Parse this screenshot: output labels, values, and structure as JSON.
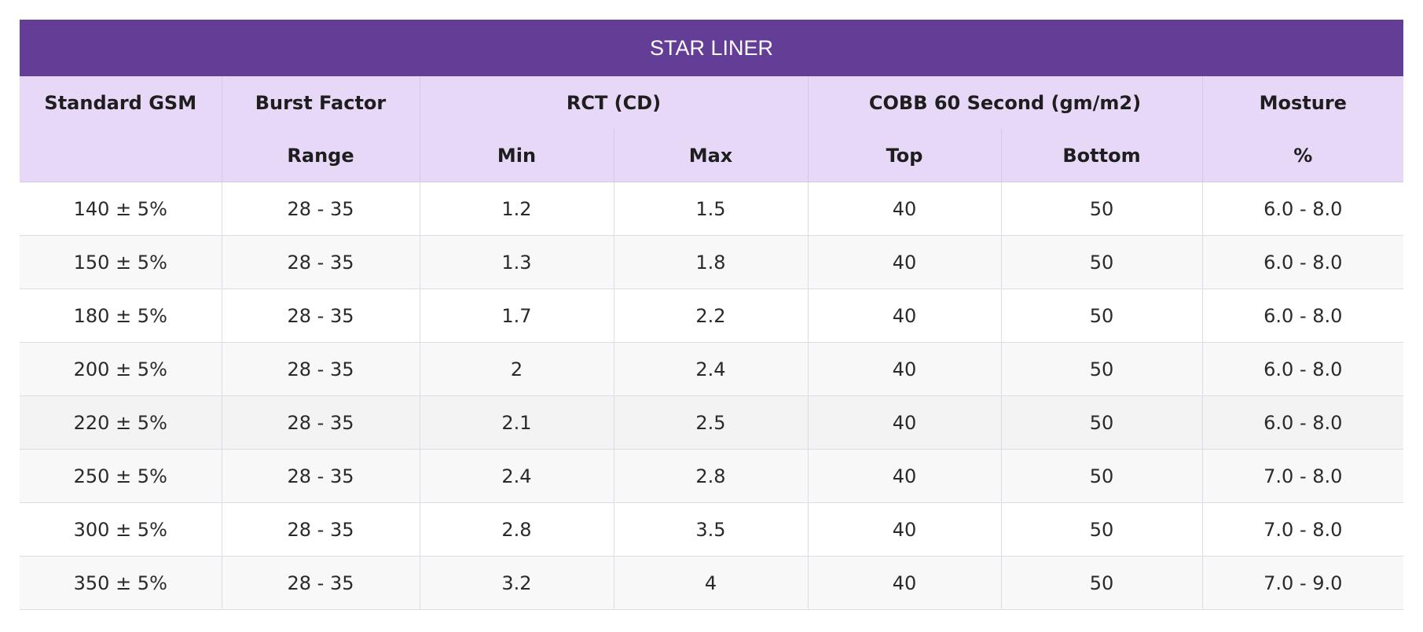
{
  "title": "STAR LINER",
  "header": {
    "row1": {
      "standard_gsm": "Standard GSM",
      "burst_factor": "Burst Factor",
      "rct": "RCT (CD)",
      "cobb": "COBB 60 Second (gm/m2)",
      "moisture": "Mosture"
    },
    "row2": {
      "range": "Range",
      "min": "Min",
      "max": "Max",
      "top": "Top",
      "bottom": "Bottom",
      "percent": "%"
    }
  },
  "rows": [
    {
      "gsm": "140 ± 5%",
      "burst": "28 - 35",
      "rct_min": "1.2",
      "rct_max": "1.5",
      "cobb_top": "40",
      "cobb_bottom": "50",
      "moisture": "6.0 - 8.0"
    },
    {
      "gsm": "150 ± 5%",
      "burst": "28 - 35",
      "rct_min": "1.3",
      "rct_max": "1.8",
      "cobb_top": "40",
      "cobb_bottom": "50",
      "moisture": "6.0 - 8.0"
    },
    {
      "gsm": "180 ± 5%",
      "burst": "28 - 35",
      "rct_min": "1.7",
      "rct_max": "2.2",
      "cobb_top": "40",
      "cobb_bottom": "50",
      "moisture": "6.0 - 8.0"
    },
    {
      "gsm": "200 ± 5%",
      "burst": "28 - 35",
      "rct_min": "2",
      "rct_max": "2.4",
      "cobb_top": "40",
      "cobb_bottom": "50",
      "moisture": "6.0 - 8.0"
    },
    {
      "gsm": "220 ± 5%",
      "burst": "28 - 35",
      "rct_min": "2.1",
      "rct_max": "2.5",
      "cobb_top": "40",
      "cobb_bottom": "50",
      "moisture": "6.0 - 8.0"
    },
    {
      "gsm": "250 ± 5%",
      "burst": "28 - 35",
      "rct_min": "2.4",
      "rct_max": "2.8",
      "cobb_top": "40",
      "cobb_bottom": "50",
      "moisture": "7.0 - 8.0"
    },
    {
      "gsm": "300 ± 5%",
      "burst": "28 - 35",
      "rct_min": "2.8",
      "rct_max": "3.5",
      "cobb_top": "40",
      "cobb_bottom": "50",
      "moisture": "7.0 - 8.0"
    },
    {
      "gsm": "350 ± 5%",
      "burst": "28 - 35",
      "rct_min": "3.2",
      "rct_max": "4",
      "cobb_top": "40",
      "cobb_bottom": "50",
      "moisture": "7.0 - 9.0"
    }
  ],
  "colors": {
    "title_bg": "#643e96",
    "header_bg": "#e8d8f8"
  }
}
